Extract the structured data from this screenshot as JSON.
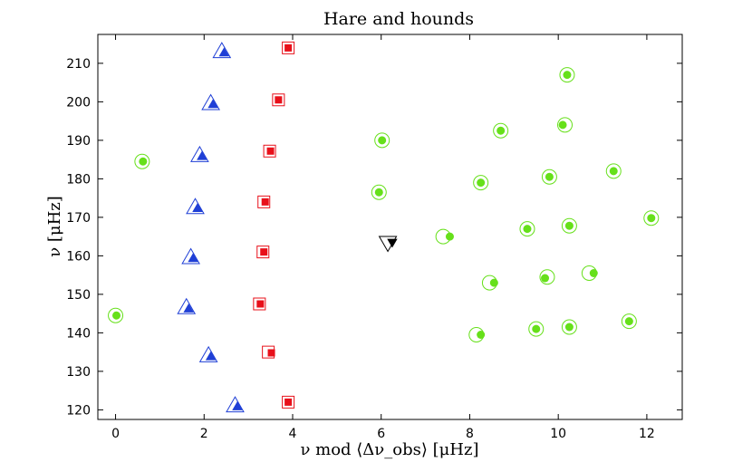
{
  "chart_data": {
    "type": "scatter",
    "title": "Hare and hounds",
    "xlabel": "ν mod ⟨Δν_obs⟩ [μHz]",
    "ylabel": "ν [μHz]",
    "xlim": [
      -0.4,
      12.8
    ],
    "ylim": [
      117.5,
      217.5
    ],
    "xticks": [
      0,
      2,
      4,
      6,
      8,
      10,
      12
    ],
    "yticks": [
      120,
      130,
      140,
      150,
      160,
      170,
      180,
      190,
      200,
      210
    ],
    "grid": false,
    "series": [
      {
        "marker": "triangle",
        "color": "#1f3fd6",
        "points": [
          {
            "ox": 2.4,
            "oy": 213.0,
            "fx": 2.45,
            "fy": 212.7
          },
          {
            "ox": 2.15,
            "oy": 199.5,
            "fx": 2.2,
            "fy": 199.3
          },
          {
            "ox": 1.9,
            "oy": 186.0,
            "fx": 1.95,
            "fy": 185.8
          },
          {
            "ox": 1.8,
            "oy": 172.5,
            "fx": 1.85,
            "fy": 172.3
          },
          {
            "ox": 1.7,
            "oy": 159.5,
            "fx": 1.75,
            "fy": 159.3
          },
          {
            "ox": 1.6,
            "oy": 146.5,
            "fx": 1.65,
            "fy": 146.2
          },
          {
            "ox": 2.1,
            "oy": 134.0,
            "fx": 2.15,
            "fy": 133.8
          },
          {
            "ox": 2.7,
            "oy": 121.0,
            "fx": 2.75,
            "fy": 120.8
          }
        ]
      },
      {
        "marker": "square",
        "color": "#e8101a",
        "points": [
          {
            "ox": 3.9,
            "oy": 214.0,
            "fx": 3.9,
            "fy": 214.0
          },
          {
            "ox": 3.68,
            "oy": 200.5,
            "fx": 3.68,
            "fy": 200.5
          },
          {
            "ox": 3.48,
            "oy": 187.2,
            "fx": 3.5,
            "fy": 187.2
          },
          {
            "ox": 3.35,
            "oy": 174.0,
            "fx": 3.38,
            "fy": 174.0
          },
          {
            "ox": 3.33,
            "oy": 161.0,
            "fx": 3.35,
            "fy": 161.0
          },
          {
            "ox": 3.25,
            "oy": 147.5,
            "fx": 3.27,
            "fy": 147.5
          },
          {
            "ox": 3.45,
            "oy": 135.0,
            "fx": 3.52,
            "fy": 134.8
          },
          {
            "ox": 3.9,
            "oy": 122.0,
            "fx": 3.9,
            "fy": 122.0
          }
        ]
      },
      {
        "marker": "circle",
        "color": "#66e01a",
        "points": [
          {
            "ox": 0.0,
            "oy": 144.5,
            "fx": 0.02,
            "fy": 144.5
          },
          {
            "ox": 0.6,
            "oy": 184.5,
            "fx": 0.62,
            "fy": 184.5
          },
          {
            "ox": 5.95,
            "oy": 176.5,
            "fx": 5.95,
            "fy": 176.5
          },
          {
            "ox": 6.02,
            "oy": 190.0,
            "fx": 6.02,
            "fy": 190.0
          },
          {
            "ox": 7.4,
            "oy": 165.0,
            "fx": 7.55,
            "fy": 165.0
          },
          {
            "ox": 8.15,
            "oy": 139.5,
            "fx": 8.25,
            "fy": 139.5
          },
          {
            "ox": 8.25,
            "oy": 179.0,
            "fx": 8.25,
            "fy": 179.0
          },
          {
            "ox": 8.45,
            "oy": 153.0,
            "fx": 8.55,
            "fy": 153.0
          },
          {
            "ox": 8.7,
            "oy": 192.5,
            "fx": 8.7,
            "fy": 192.5
          },
          {
            "ox": 9.3,
            "oy": 167.0,
            "fx": 9.3,
            "fy": 167.0
          },
          {
            "ox": 9.5,
            "oy": 141.0,
            "fx": 9.5,
            "fy": 141.0
          },
          {
            "ox": 9.75,
            "oy": 154.5,
            "fx": 9.7,
            "fy": 154.2
          },
          {
            "ox": 9.8,
            "oy": 180.5,
            "fx": 9.8,
            "fy": 180.5
          },
          {
            "ox": 10.15,
            "oy": 194.0,
            "fx": 10.1,
            "fy": 194.0
          },
          {
            "ox": 10.2,
            "oy": 207.0,
            "fx": 10.2,
            "fy": 207.0
          },
          {
            "ox": 10.25,
            "oy": 167.8,
            "fx": 10.25,
            "fy": 167.8
          },
          {
            "ox": 10.25,
            "oy": 141.5,
            "fx": 10.25,
            "fy": 141.5
          },
          {
            "ox": 10.7,
            "oy": 155.5,
            "fx": 10.8,
            "fy": 155.5
          },
          {
            "ox": 11.25,
            "oy": 182.0,
            "fx": 11.25,
            "fy": 182.0
          },
          {
            "ox": 11.6,
            "oy": 143.0,
            "fx": 11.6,
            "fy": 143.0
          },
          {
            "ox": 12.1,
            "oy": 169.8,
            "fx": 12.1,
            "fy": 169.8
          }
        ]
      },
      {
        "marker": "triangle-down",
        "color": "#000000",
        "points": [
          {
            "ox": 6.15,
            "oy": 163.5,
            "fx": 6.25,
            "fy": 163.5
          }
        ]
      }
    ]
  }
}
